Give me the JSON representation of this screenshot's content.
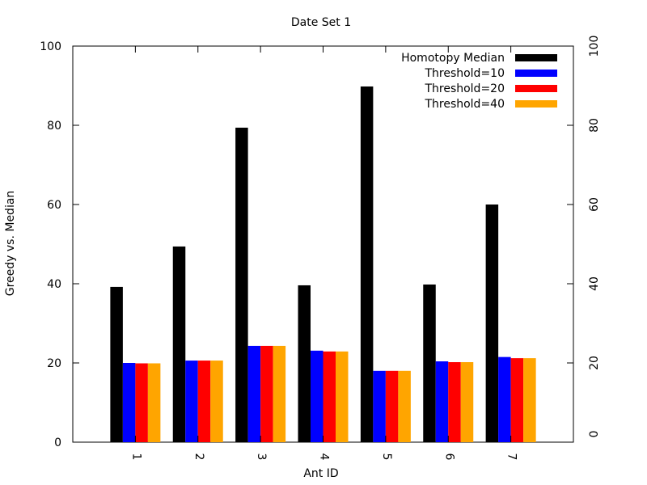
{
  "chart_data": {
    "type": "bar",
    "title": "Date Set 1",
    "xlabel": "Ant ID",
    "ylabel": "Greedy vs. Median",
    "ylim": [
      0,
      100
    ],
    "y2lim": [
      0,
      100
    ],
    "yticks": [
      0,
      20,
      40,
      60,
      80,
      100
    ],
    "categories": [
      "1",
      "2",
      "3",
      "4",
      "5",
      "6",
      "7"
    ],
    "legend_position": "top-right",
    "grid": false,
    "series": [
      {
        "name": "Homotopy Median",
        "color": "#000000",
        "values": [
          39.2,
          49.4,
          79.4,
          39.6,
          89.8,
          39.8,
          60.0
        ]
      },
      {
        "name": "Threshold=10",
        "color": "#0000ff",
        "values": [
          20.0,
          20.6,
          24.3,
          23.1,
          18.0,
          20.4,
          21.5
        ]
      },
      {
        "name": "Threshold=20",
        "color": "#ff0000",
        "values": [
          19.9,
          20.6,
          24.3,
          22.9,
          18.0,
          20.2,
          21.2
        ]
      },
      {
        "name": "Threshold=40",
        "color": "#ffa500",
        "values": [
          19.9,
          20.6,
          24.3,
          22.9,
          18.0,
          20.2,
          21.2
        ]
      }
    ]
  }
}
